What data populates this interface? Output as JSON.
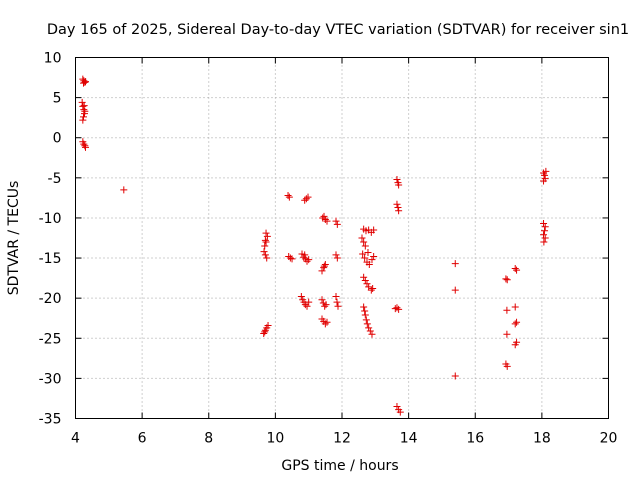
{
  "chart_data": {
    "type": "scatter",
    "title": "Day 165 of 2025, Sidereal Day-to-day VTEC variation (SDTVAR) for receiver sin1",
    "xlabel": "GPS time / hours",
    "ylabel": "SDTVAR / TECUs",
    "xlim": [
      4,
      20
    ],
    "ylim": [
      -35,
      10
    ],
    "xticks": [
      4,
      6,
      8,
      10,
      12,
      14,
      16,
      18,
      20
    ],
    "yticks": [
      10,
      5,
      0,
      -5,
      -10,
      -15,
      -20,
      -25,
      -30,
      -35
    ],
    "grid": true,
    "marker": "+",
    "color": "#e00000",
    "series": [
      {
        "name": "SDTVAR",
        "points": [
          [
            4.22,
            7.3
          ],
          [
            4.25,
            7.1
          ],
          [
            4.28,
            6.9
          ],
          [
            4.3,
            7.0
          ],
          [
            4.24,
            6.8
          ],
          [
            4.2,
            4.4
          ],
          [
            4.22,
            3.9
          ],
          [
            4.25,
            3.5
          ],
          [
            4.27,
            3.0
          ],
          [
            4.24,
            2.6
          ],
          [
            4.22,
            2.2
          ],
          [
            4.28,
            3.3
          ],
          [
            4.26,
            4.0
          ],
          [
            4.22,
            -0.5
          ],
          [
            4.25,
            -0.8
          ],
          [
            4.28,
            -1.0
          ],
          [
            4.3,
            -1.2
          ],
          [
            5.45,
            -6.5
          ],
          [
            9.72,
            -11.9
          ],
          [
            9.76,
            -12.3
          ],
          [
            9.7,
            -12.8
          ],
          [
            9.68,
            -13.5
          ],
          [
            9.66,
            -14.2
          ],
          [
            9.7,
            -14.6
          ],
          [
            9.74,
            -15.0
          ],
          [
            9.72,
            -13.0
          ],
          [
            9.65,
            -24.4
          ],
          [
            9.7,
            -24.0
          ],
          [
            9.74,
            -23.7
          ],
          [
            9.78,
            -23.4
          ],
          [
            9.68,
            -24.2
          ],
          [
            10.38,
            -7.2
          ],
          [
            10.42,
            -7.4
          ],
          [
            10.4,
            -14.8
          ],
          [
            10.45,
            -15.0
          ],
          [
            10.5,
            -15.1
          ],
          [
            10.8,
            -14.5
          ],
          [
            10.85,
            -14.9
          ],
          [
            10.9,
            -15.1
          ],
          [
            10.95,
            -15.4
          ],
          [
            10.88,
            -14.6
          ],
          [
            11.0,
            -15.2
          ],
          [
            10.88,
            -7.8
          ],
          [
            10.93,
            -7.6
          ],
          [
            10.98,
            -7.4
          ],
          [
            10.78,
            -19.8
          ],
          [
            10.82,
            -20.2
          ],
          [
            10.86,
            -20.5
          ],
          [
            10.9,
            -20.8
          ],
          [
            10.95,
            -21.0
          ],
          [
            11.0,
            -20.5
          ],
          [
            11.42,
            -10.0
          ],
          [
            11.46,
            -9.8
          ],
          [
            11.5,
            -10.2
          ],
          [
            11.55,
            -10.4
          ],
          [
            11.4,
            -16.6
          ],
          [
            11.45,
            -16.2
          ],
          [
            11.5,
            -15.8
          ],
          [
            11.47,
            -16.0
          ],
          [
            11.4,
            -20.2
          ],
          [
            11.44,
            -20.6
          ],
          [
            11.48,
            -21.0
          ],
          [
            11.52,
            -20.8
          ],
          [
            11.4,
            -22.6
          ],
          [
            11.45,
            -22.9
          ],
          [
            11.5,
            -23.2
          ],
          [
            11.55,
            -23.0
          ],
          [
            11.82,
            -10.4
          ],
          [
            11.86,
            -10.8
          ],
          [
            11.82,
            -14.6
          ],
          [
            11.86,
            -15.0
          ],
          [
            11.82,
            -19.8
          ],
          [
            11.85,
            -20.5
          ],
          [
            11.88,
            -21.0
          ],
          [
            12.65,
            -11.4
          ],
          [
            12.72,
            -11.6
          ],
          [
            12.8,
            -11.5
          ],
          [
            12.88,
            -11.8
          ],
          [
            12.95,
            -11.5
          ],
          [
            12.6,
            -12.5
          ],
          [
            12.65,
            -13.0
          ],
          [
            12.7,
            -13.5
          ],
          [
            12.62,
            -14.5
          ],
          [
            12.68,
            -15.0
          ],
          [
            12.75,
            -15.5
          ],
          [
            12.82,
            -15.8
          ],
          [
            12.9,
            -15.2
          ],
          [
            12.95,
            -14.8
          ],
          [
            12.78,
            -14.3
          ],
          [
            12.65,
            -17.4
          ],
          [
            12.7,
            -17.8
          ],
          [
            12.75,
            -18.2
          ],
          [
            12.8,
            -18.6
          ],
          [
            12.88,
            -19.0
          ],
          [
            12.92,
            -18.8
          ],
          [
            12.65,
            -21.1
          ],
          [
            12.68,
            -21.6
          ],
          [
            12.7,
            -22.1
          ],
          [
            12.73,
            -22.7
          ],
          [
            12.76,
            -23.2
          ],
          [
            12.8,
            -23.7
          ],
          [
            12.85,
            -24.1
          ],
          [
            12.9,
            -24.5
          ],
          [
            13.65,
            -5.2
          ],
          [
            13.68,
            -5.6
          ],
          [
            13.7,
            -5.9
          ],
          [
            13.65,
            -8.3
          ],
          [
            13.68,
            -8.7
          ],
          [
            13.7,
            -9.1
          ],
          [
            13.6,
            -21.3
          ],
          [
            13.65,
            -21.2
          ],
          [
            13.7,
            -21.4
          ],
          [
            13.65,
            -33.5
          ],
          [
            13.7,
            -33.9
          ],
          [
            13.75,
            -34.2
          ],
          [
            15.4,
            -15.7
          ],
          [
            15.4,
            -19.0
          ],
          [
            15.4,
            -29.7
          ],
          [
            16.92,
            -17.6
          ],
          [
            16.96,
            -17.7
          ],
          [
            16.95,
            -21.5
          ],
          [
            16.95,
            -24.5
          ],
          [
            16.92,
            -28.2
          ],
          [
            16.96,
            -28.5
          ],
          [
            17.2,
            -16.3
          ],
          [
            17.24,
            -16.5
          ],
          [
            17.2,
            -21.1
          ],
          [
            17.24,
            -23.0
          ],
          [
            17.2,
            -23.2
          ],
          [
            17.24,
            -25.5
          ],
          [
            17.2,
            -25.8
          ],
          [
            18.05,
            -4.4
          ],
          [
            18.08,
            -4.7
          ],
          [
            18.1,
            -5.1
          ],
          [
            18.05,
            -5.4
          ],
          [
            18.12,
            -4.2
          ],
          [
            18.05,
            -10.7
          ],
          [
            18.1,
            -11.1
          ],
          [
            18.08,
            -11.6
          ],
          [
            18.05,
            -12.1
          ],
          [
            18.1,
            -12.5
          ],
          [
            18.06,
            -13.0
          ]
        ]
      }
    ]
  }
}
